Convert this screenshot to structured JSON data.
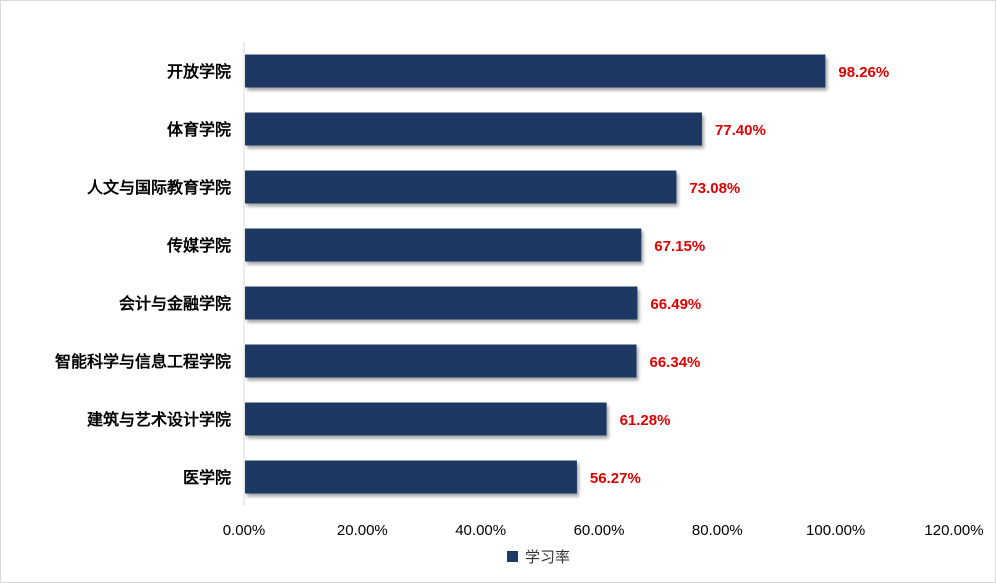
{
  "chart_data": {
    "type": "bar",
    "orientation": "horizontal",
    "categories": [
      "开放学院",
      "体育学院",
      "人文与国际教育学院",
      "传媒学院",
      "会计与金融学院",
      "智能科学与信息工程学院",
      "建筑与艺术设计学院",
      "医学院"
    ],
    "series": [
      {
        "name": "学习率",
        "color": "#1f3864",
        "values": [
          98.26,
          77.4,
          73.08,
          67.15,
          66.49,
          66.34,
          61.28,
          56.27
        ],
        "labels": [
          "98.26%",
          "77.40%",
          "73.08%",
          "67.15%",
          "66.49%",
          "66.34%",
          "61.28%",
          "56.27%"
        ]
      }
    ],
    "xlim": [
      0,
      120
    ],
    "xticks": [
      "0.00%",
      "20.00%",
      "40.00%",
      "60.00%",
      "80.00%",
      "100.00%",
      "120.00%"
    ],
    "data_label_color": "#e00000",
    "legend_position": "bottom",
    "grid": false
  }
}
